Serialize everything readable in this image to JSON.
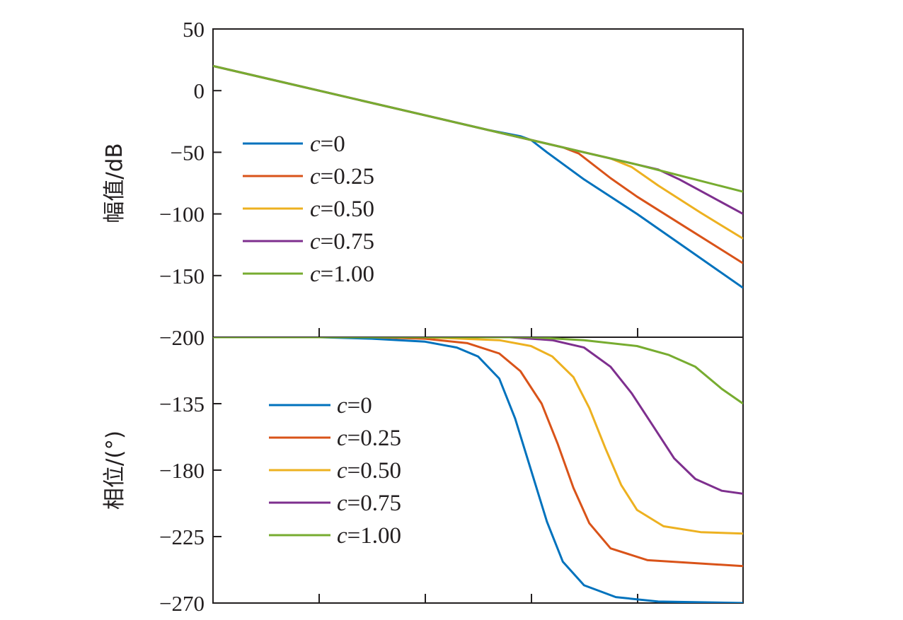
{
  "chart_data": [
    {
      "type": "line",
      "panel": "magnitude",
      "ylabel": "幅值/dB",
      "ylim": [
        -200,
        50
      ],
      "yticks": [
        50,
        0,
        -50,
        -100,
        -150,
        -200
      ],
      "ytick_labels": [
        "50",
        "0",
        "−50",
        "−100",
        "−150",
        "−200"
      ],
      "xlim": [
        0,
        5
      ],
      "x_scale": "log (decades, unlabeled)",
      "grid": false,
      "legend": "center-left",
      "series": [
        {
          "name": "c=0",
          "legend_var": "c",
          "legend_val": "=0",
          "color": "#0072bd",
          "points": [
            [
              0,
              20
            ],
            [
              1,
              0
            ],
            [
              2,
              -20
            ],
            [
              2.6,
              -32
            ],
            [
              2.9,
              -37
            ],
            [
              3.0,
              -40
            ],
            [
              3.15,
              -50
            ],
            [
              3.5,
              -72
            ],
            [
              4,
              -100
            ],
            [
              4.5,
              -130
            ],
            [
              5,
              -160
            ]
          ]
        },
        {
          "name": "c=0.25",
          "legend_var": "c",
          "legend_val": "=0.25",
          "color": "#d95319",
          "points": [
            [
              0,
              20
            ],
            [
              1,
              0
            ],
            [
              2,
              -20
            ],
            [
              3,
              -40
            ],
            [
              3.3,
              -46
            ],
            [
              3.45,
              -51
            ],
            [
              3.75,
              -71
            ],
            [
              4,
              -86
            ],
            [
              4.5,
              -113
            ],
            [
              5,
              -140
            ]
          ]
        },
        {
          "name": "c=0.50",
          "legend_var": "c",
          "legend_val": "=0.50",
          "color": "#edb120",
          "points": [
            [
              0,
              20
            ],
            [
              1,
              0
            ],
            [
              2,
              -20
            ],
            [
              3,
              -40
            ],
            [
              3.5,
              -50
            ],
            [
              3.75,
              -55
            ],
            [
              3.95,
              -62
            ],
            [
              4.2,
              -77
            ],
            [
              4.6,
              -99
            ],
            [
              5,
              -120
            ]
          ]
        },
        {
          "name": "c=0.75",
          "legend_var": "c",
          "legend_val": "=0.75",
          "color": "#7e2f8e",
          "points": [
            [
              0,
              20
            ],
            [
              1,
              0
            ],
            [
              2,
              -20
            ],
            [
              3,
              -40
            ],
            [
              3.5,
              -50
            ],
            [
              4,
              -60
            ],
            [
              4.2,
              -64
            ],
            [
              4.4,
              -72
            ],
            [
              4.7,
              -86
            ],
            [
              5,
              -100
            ]
          ]
        },
        {
          "name": "c=1.00",
          "legend_var": "c",
          "legend_val": "=1.00",
          "color": "#77ac30",
          "points": [
            [
              0,
              20
            ],
            [
              1,
              0
            ],
            [
              2,
              -20
            ],
            [
              3,
              -40
            ],
            [
              3.5,
              -50
            ],
            [
              4,
              -60
            ],
            [
              4.5,
              -71
            ],
            [
              5,
              -82
            ]
          ]
        }
      ]
    },
    {
      "type": "line",
      "panel": "phase",
      "ylabel": "相位/(°)",
      "ylim": [
        -270,
        -90
      ],
      "yticks": [
        -135,
        -180,
        -225,
        -270
      ],
      "ytick_labels": [
        "−135",
        "−180",
        "−225",
        "−270"
      ],
      "xlim": [
        0,
        5
      ],
      "x_scale": "log (decades, unlabeled)",
      "grid": false,
      "legend": "center-left",
      "series": [
        {
          "name": "c=0",
          "legend_var": "c",
          "legend_val": "=0",
          "color": "#0072bd",
          "points": [
            [
              0,
              -90
            ],
            [
              1,
              -90
            ],
            [
              1.5,
              -91
            ],
            [
              2,
              -93
            ],
            [
              2.3,
              -97
            ],
            [
              2.5,
              -103
            ],
            [
              2.7,
              -118
            ],
            [
              2.85,
              -145
            ],
            [
              3,
              -180
            ],
            [
              3.15,
              -215
            ],
            [
              3.3,
              -242
            ],
            [
              3.5,
              -258
            ],
            [
              3.8,
              -266
            ],
            [
              4.2,
              -269
            ],
            [
              5,
              -270
            ]
          ]
        },
        {
          "name": "c=0.25",
          "legend_var": "c",
          "legend_val": "=0.25",
          "color": "#d95319",
          "points": [
            [
              0,
              -90
            ],
            [
              1,
              -90
            ],
            [
              1.5,
              -90
            ],
            [
              2,
              -91
            ],
            [
              2.4,
              -94
            ],
            [
              2.7,
              -101
            ],
            [
              2.9,
              -113
            ],
            [
              3.1,
              -135
            ],
            [
              3.25,
              -162
            ],
            [
              3.4,
              -192
            ],
            [
              3.55,
              -216
            ],
            [
              3.75,
              -233
            ],
            [
              4.1,
              -241
            ],
            [
              5,
              -245
            ]
          ]
        },
        {
          "name": "c=0.50",
          "legend_var": "c",
          "legend_val": "=0.50",
          "color": "#edb120",
          "points": [
            [
              0,
              -90
            ],
            [
              1,
              -90
            ],
            [
              2,
              -90
            ],
            [
              2.7,
              -92
            ],
            [
              3,
              -96
            ],
            [
              3.2,
              -103
            ],
            [
              3.4,
              -117
            ],
            [
              3.55,
              -138
            ],
            [
              3.7,
              -165
            ],
            [
              3.85,
              -190
            ],
            [
              4,
              -207
            ],
            [
              4.25,
              -218
            ],
            [
              4.6,
              -222
            ],
            [
              5,
              -223
            ]
          ]
        },
        {
          "name": "c=0.75",
          "legend_var": "c",
          "legend_val": "=0.75",
          "color": "#7e2f8e",
          "points": [
            [
              0,
              -90
            ],
            [
              1,
              -90
            ],
            [
              2,
              -90
            ],
            [
              2.8,
              -90
            ],
            [
              3.2,
              -92
            ],
            [
              3.5,
              -97
            ],
            [
              3.75,
              -110
            ],
            [
              3.95,
              -128
            ],
            [
              4.15,
              -150
            ],
            [
              4.35,
              -172
            ],
            [
              4.55,
              -186
            ],
            [
              4.8,
              -194
            ],
            [
              5,
              -196
            ]
          ]
        },
        {
          "name": "c=1.00",
          "legend_var": "c",
          "legend_val": "=1.00",
          "color": "#77ac30",
          "points": [
            [
              0,
              -90
            ],
            [
              1,
              -90
            ],
            [
              2,
              -90
            ],
            [
              3,
              -90
            ],
            [
              3.5,
              -92
            ],
            [
              4,
              -96
            ],
            [
              4.3,
              -102
            ],
            [
              4.55,
              -110
            ],
            [
              4.8,
              -125
            ],
            [
              5,
              -135
            ]
          ]
        }
      ]
    }
  ]
}
